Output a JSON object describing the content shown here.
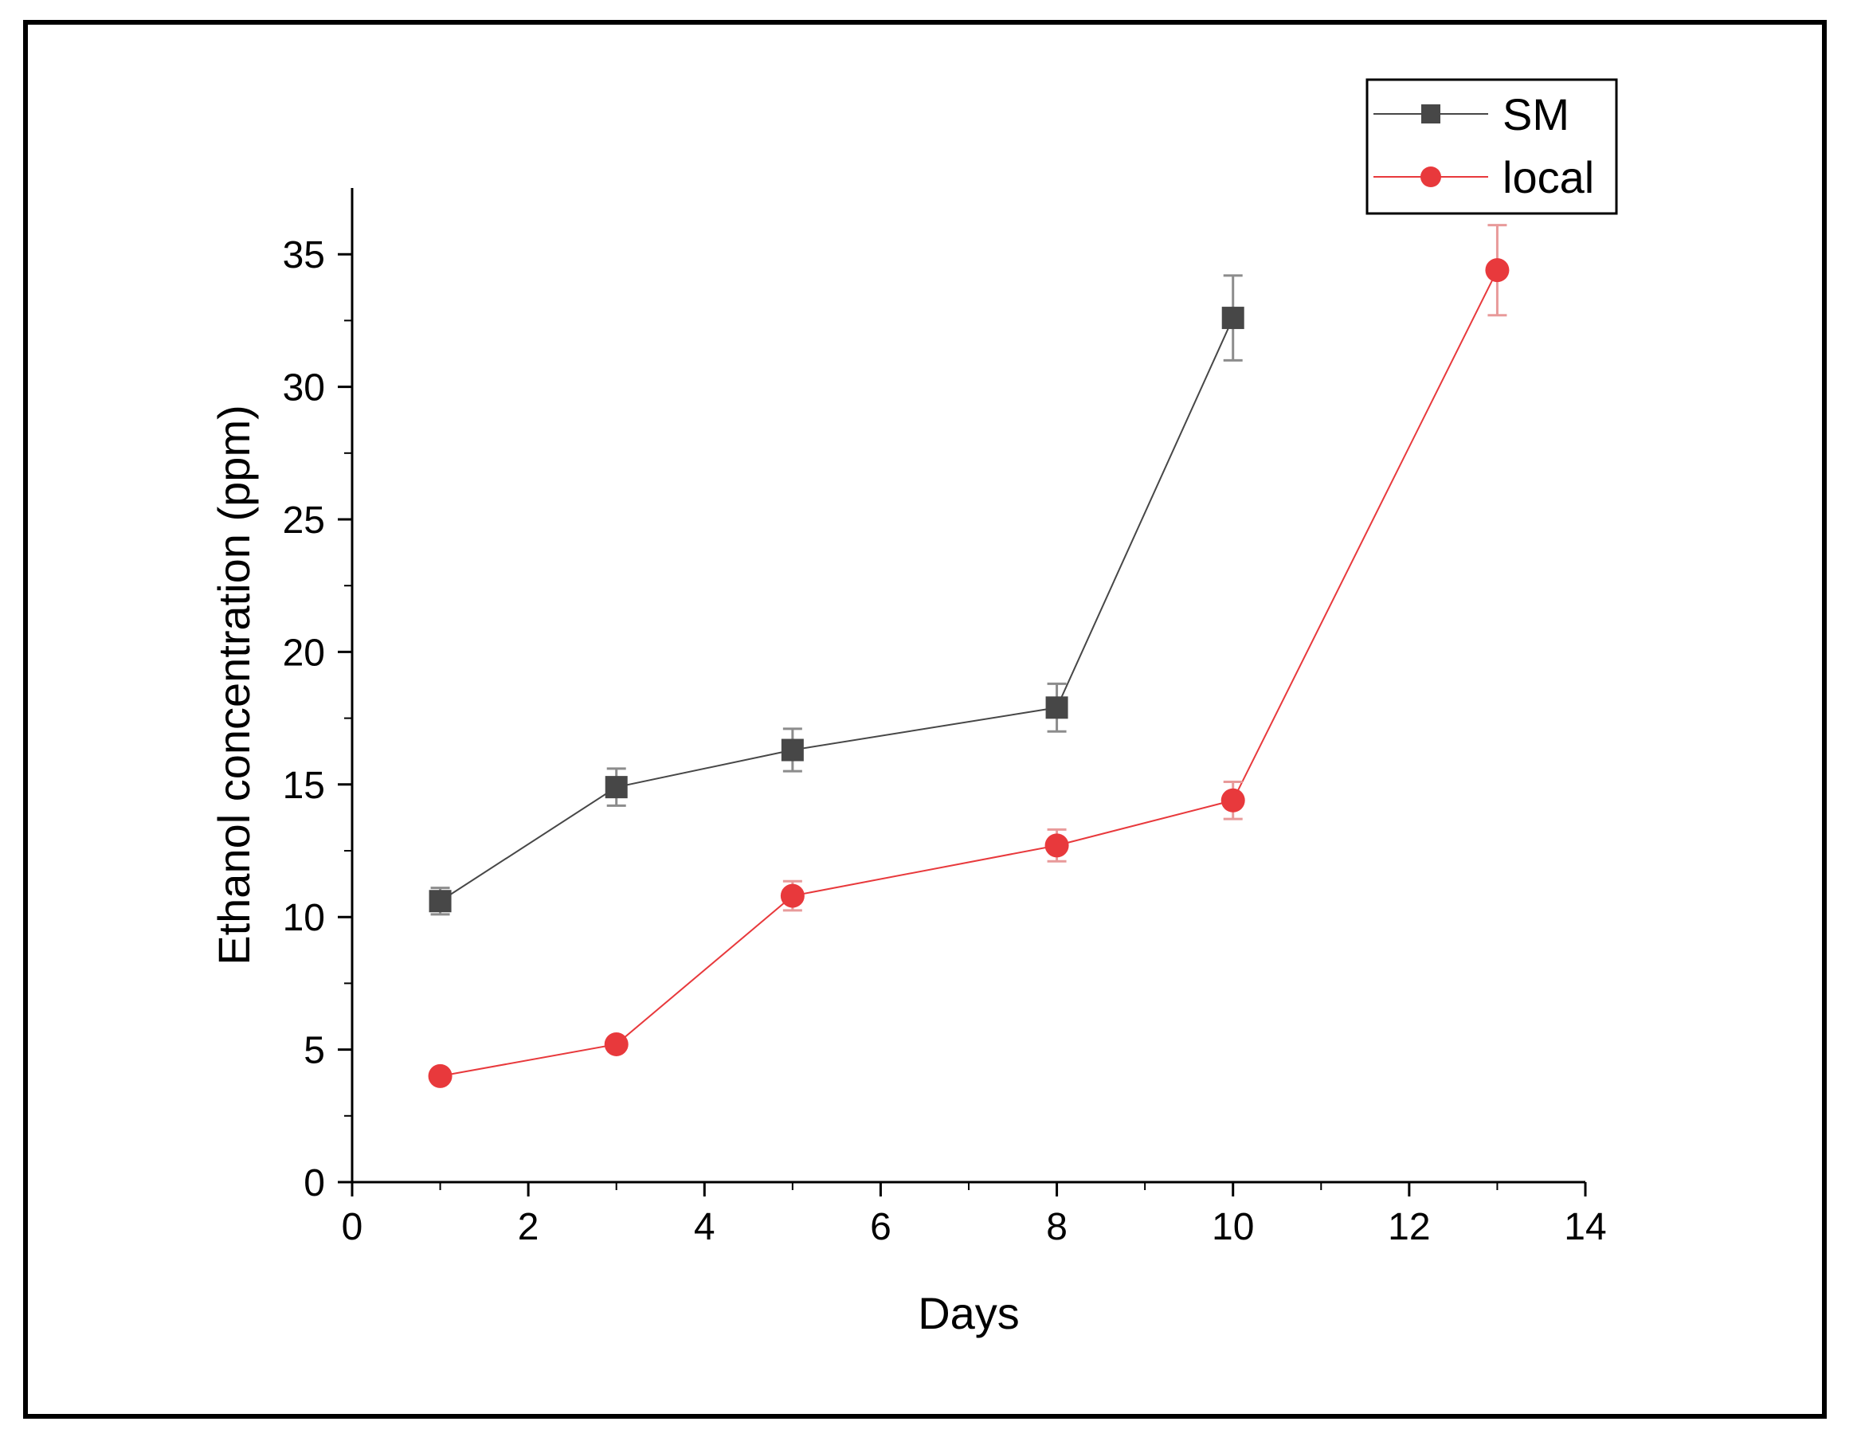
{
  "chart_data": {
    "type": "line",
    "title": "",
    "xlabel": "Days",
    "ylabel": "Ethanol concentration (ppm)",
    "xlim": [
      0,
      14
    ],
    "ylim": [
      0,
      37.5
    ],
    "xticks": [
      0,
      2,
      4,
      6,
      8,
      10,
      12,
      14
    ],
    "xtick_labels": [
      "0",
      "2",
      "4",
      "6",
      "8",
      "10",
      "12",
      "14"
    ],
    "yticks": [
      0,
      5,
      10,
      15,
      20,
      25,
      30,
      35
    ],
    "ytick_labels": [
      "0",
      "5",
      "10",
      "15",
      "20",
      "25",
      "30",
      "35"
    ],
    "legend_position": "top-right",
    "grid": false,
    "series": [
      {
        "name": "SM",
        "marker": "square",
        "color": "#474747",
        "x": [
          1,
          3,
          5,
          8,
          10
        ],
        "y": [
          10.6,
          14.9,
          16.3,
          17.9,
          32.6
        ],
        "error": [
          0.5,
          0.7,
          0.8,
          0.9,
          1.6
        ]
      },
      {
        "name": "local",
        "marker": "circle",
        "color": "#e8393c",
        "x": [
          1,
          3,
          5,
          8,
          10,
          13
        ],
        "y": [
          4.0,
          5.2,
          10.8,
          12.7,
          14.4,
          34.4
        ],
        "error": [
          0.15,
          0.2,
          0.55,
          0.6,
          0.7,
          1.7
        ]
      }
    ]
  }
}
